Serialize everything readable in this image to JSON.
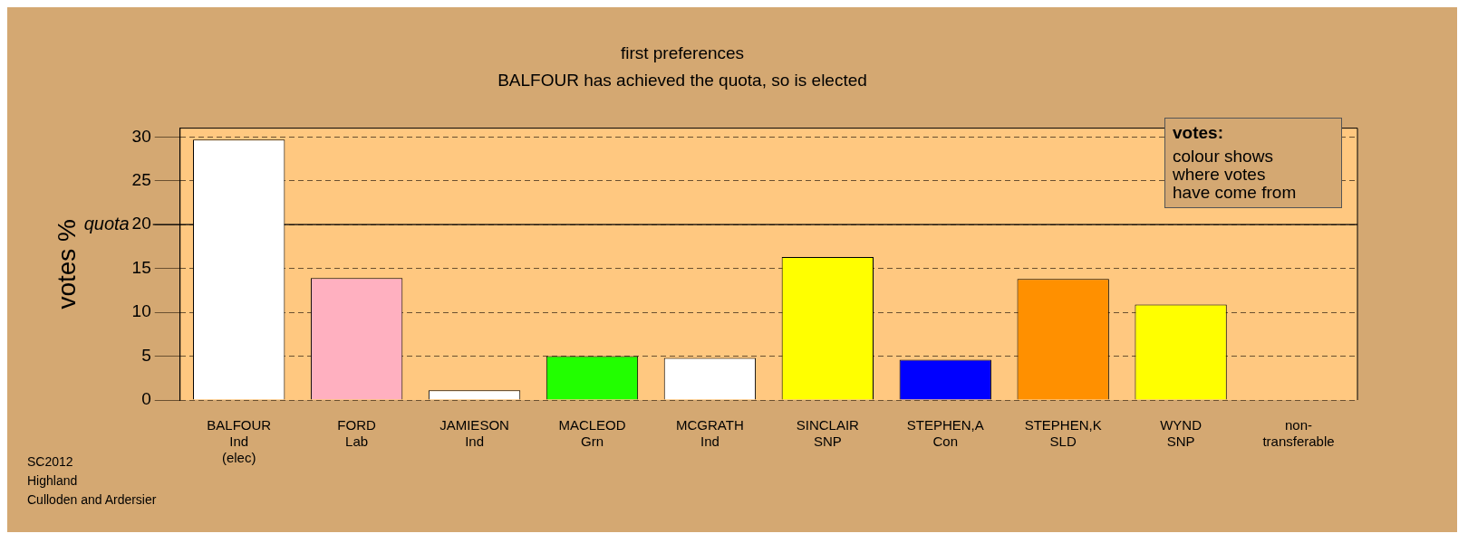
{
  "chart_data": {
    "type": "bar",
    "title": "first preferences",
    "subtitle": "BALFOUR has achieved the quota, so is elected",
    "ylabel": "votes %",
    "categories": [
      "BALFOUR\nInd\n(elec)",
      "FORD\nLab",
      "JAMIESON\nInd",
      "MACLEOD\nGrn",
      "MCGRATH\nInd",
      "SINCLAIR\nSNP",
      "STEPHEN,A\nCon",
      "STEPHEN,K\nSLD",
      "WYND\nSNP",
      "non-\ntransferable"
    ],
    "values": [
      29.7,
      13.9,
      1.1,
      5.0,
      4.8,
      16.3,
      4.6,
      13.8,
      10.9,
      null
    ],
    "colors": [
      "#ffffff",
      "#ffb0c0",
      "#ffffff",
      "#22ff00",
      "#ffffff",
      "#ffff00",
      "#0000ff",
      "#ff9000",
      "#ffff00",
      "#ffffff"
    ],
    "ylim": [
      0,
      31
    ],
    "yticks": [
      0,
      5,
      10,
      15,
      20,
      25,
      30
    ],
    "grid": "y",
    "legend": false,
    "ref_lines": [
      {
        "axis": "y",
        "value": 20,
        "label": "quota"
      }
    ],
    "annotations": [
      "votes:",
      "colour shows\nwhere votes\nhave come from",
      "SC2012\nHighland\nCulloden and Ardersier"
    ]
  }
}
